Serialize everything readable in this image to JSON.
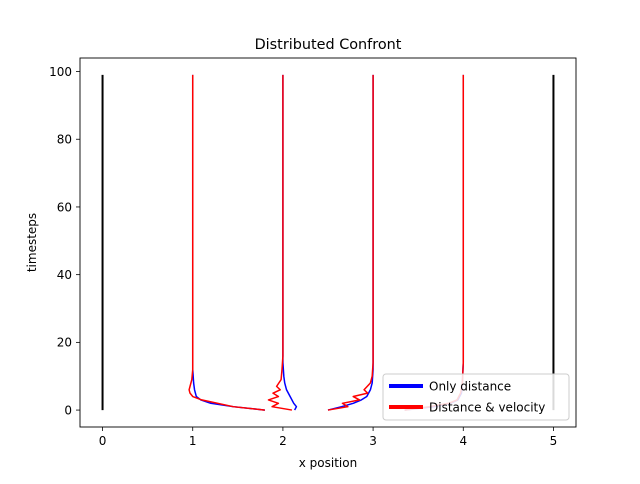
{
  "chart_data": {
    "type": "line",
    "title": "Distributed Confront",
    "xlabel": "x position",
    "ylabel": "timesteps",
    "xlim": [
      -0.25,
      5.25
    ],
    "ylim": [
      -5,
      104
    ],
    "x_ticks": [
      0,
      1,
      2,
      3,
      4,
      5
    ],
    "y_ticks": [
      0,
      20,
      40,
      60,
      80,
      100
    ],
    "grid": false,
    "legend_position": "lower-right",
    "walls": {
      "color": "#000000",
      "lines": [
        {
          "x": [
            0,
            0
          ],
          "y": [
            0,
            99
          ]
        },
        {
          "x": [
            5,
            5
          ],
          "y": [
            0,
            99
          ]
        }
      ]
    },
    "series": [
      {
        "name": "Only distance",
        "color": "#0000ff",
        "agents": [
          {
            "x": [
              1.8,
              1.45,
              1.2,
              1.09,
              1.04,
              1.02,
              1.01,
              1.0,
              1.0,
              1.0
            ],
            "y": [
              0,
              1,
              2,
              3,
              4,
              6,
              8,
              12,
              20,
              99
            ]
          },
          {
            "x": [
              2.13,
              2.15,
              2.12,
              2.08,
              2.04,
              2.02,
              2.01,
              2.0,
              2.0,
              2.0
            ],
            "y": [
              0,
              1,
              2,
              4,
              6,
              8,
              10,
              14,
              20,
              99
            ]
          },
          {
            "x": [
              2.5,
              2.65,
              2.78,
              2.87,
              2.93,
              2.97,
              2.99,
              3.0,
              3.0
            ],
            "y": [
              0,
              1,
              2,
              3,
              4,
              6,
              8,
              12,
              99
            ]
          },
          {
            "x": [
              3.35,
              3.68,
              3.86,
              3.94,
              3.98,
              3.99,
              4.0,
              4.0
            ],
            "y": [
              0,
              1,
              2,
              3,
              5,
              8,
              14,
              99
            ]
          }
        ]
      },
      {
        "name": "Distance & velocity",
        "color": "#ff0000",
        "agents": [
          {
            "x": [
              1.8,
              1.45,
              1.1,
              1.0,
              0.97,
              0.96,
              0.97,
              0.99,
              1.0,
              1.0,
              1.0
            ],
            "y": [
              0,
              1,
              3,
              4,
              5,
              6,
              7,
              9,
              12,
              20,
              99
            ]
          },
          {
            "x": [
              2.1,
              1.88,
              1.95,
              1.84,
              1.95,
              1.89,
              1.97,
              1.93,
              1.98,
              1.99,
              2.0,
              2.0
            ],
            "y": [
              0,
              1,
              2,
              3,
              4,
              5,
              6,
              7,
              9,
              12,
              16,
              99
            ]
          },
          {
            "x": [
              2.5,
              2.72,
              2.66,
              2.85,
              2.78,
              2.94,
              2.9,
              2.97,
              2.99,
              3.0,
              3.0
            ],
            "y": [
              0,
              1,
              2,
              3,
              4,
              5,
              6,
              8,
              10,
              14,
              99
            ]
          },
          {
            "x": [
              3.35,
              3.62,
              3.84,
              3.93,
              3.97,
              3.99,
              4.0,
              4.0
            ],
            "y": [
              0,
              1,
              2,
              3,
              5,
              8,
              14,
              99
            ]
          }
        ]
      }
    ]
  }
}
